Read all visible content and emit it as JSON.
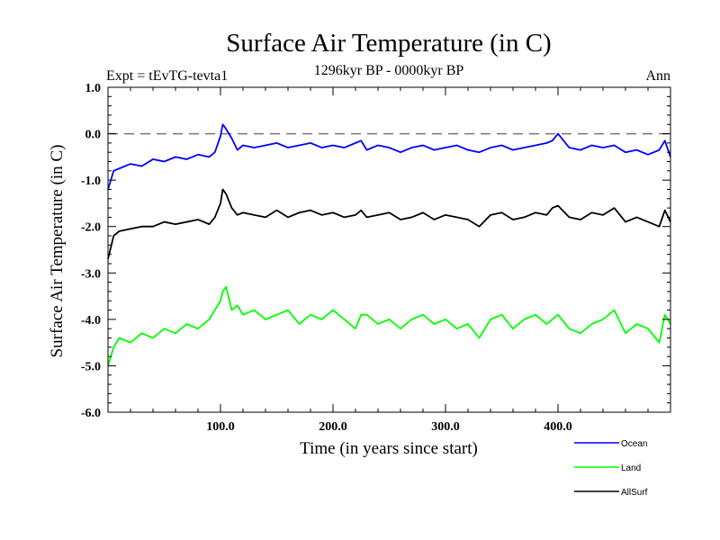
{
  "chart_data": {
    "type": "line",
    "title": "Surface Air Temperature (in C)",
    "subtitle_left": "Expt = tEvTG-tevta1",
    "subtitle_center": "1296kyr BP - 0000kyr BP",
    "subtitle_right": "Ann",
    "xlabel": "Time (in years since start)",
    "ylabel": "Surface Air Temperature (in C)",
    "xlim": [
      0,
      500
    ],
    "ylim": [
      -6.0,
      1.0
    ],
    "x_ticks": [
      100,
      200,
      300,
      400
    ],
    "x_tick_labels": [
      "100.0",
      "200.0",
      "300.0",
      "400.0"
    ],
    "y_ticks": [
      -6,
      -5,
      -4,
      -3,
      -2,
      -1,
      0,
      1
    ],
    "y_tick_labels": [
      "-6.0",
      "-5.0",
      "-4.0",
      "-3.0",
      "-2.0",
      "-1.0",
      "0.0",
      "1.0"
    ],
    "reference_line": {
      "y": 0.0,
      "style": "dashed",
      "color": "#777777"
    },
    "legend_placement": "bottom-right outside",
    "series": [
      {
        "name": "Ocean",
        "color": "#0000ff",
        "x": [
          0,
          5,
          10,
          20,
          30,
          40,
          50,
          60,
          70,
          80,
          90,
          95,
          100,
          102,
          105,
          110,
          115,
          120,
          130,
          140,
          150,
          160,
          170,
          180,
          190,
          200,
          210,
          220,
          225,
          230,
          240,
          250,
          260,
          270,
          280,
          290,
          300,
          310,
          320,
          330,
          340,
          350,
          360,
          370,
          380,
          390,
          395,
          400,
          410,
          420,
          430,
          440,
          450,
          460,
          470,
          480,
          490,
          495,
          500
        ],
        "values": [
          -1.2,
          -0.8,
          -0.75,
          -0.65,
          -0.7,
          -0.55,
          -0.6,
          -0.5,
          -0.55,
          -0.45,
          -0.5,
          -0.4,
          -0.05,
          0.2,
          0.1,
          -0.1,
          -0.35,
          -0.25,
          -0.3,
          -0.25,
          -0.2,
          -0.3,
          -0.25,
          -0.2,
          -0.3,
          -0.25,
          -0.3,
          -0.2,
          -0.15,
          -0.35,
          -0.25,
          -0.3,
          -0.4,
          -0.3,
          -0.25,
          -0.35,
          -0.3,
          -0.25,
          -0.35,
          -0.4,
          -0.3,
          -0.25,
          -0.35,
          -0.3,
          -0.25,
          -0.2,
          -0.15,
          0.0,
          -0.3,
          -0.35,
          -0.25,
          -0.3,
          -0.25,
          -0.4,
          -0.35,
          -0.45,
          -0.35,
          -0.15,
          -0.5
        ]
      },
      {
        "name": "Land",
        "color": "#00ff00",
        "x": [
          0,
          5,
          10,
          20,
          30,
          40,
          50,
          60,
          70,
          80,
          90,
          95,
          100,
          102,
          105,
          110,
          115,
          120,
          130,
          140,
          150,
          160,
          170,
          180,
          190,
          200,
          210,
          220,
          225,
          230,
          240,
          250,
          260,
          270,
          280,
          290,
          300,
          310,
          320,
          330,
          340,
          350,
          360,
          370,
          380,
          390,
          395,
          400,
          410,
          420,
          430,
          440,
          450,
          460,
          470,
          480,
          490,
          495,
          500
        ],
        "values": [
          -5.0,
          -4.6,
          -4.4,
          -4.5,
          -4.3,
          -4.4,
          -4.2,
          -4.3,
          -4.1,
          -4.2,
          -4.0,
          -3.8,
          -3.6,
          -3.4,
          -3.3,
          -3.8,
          -3.7,
          -3.9,
          -3.8,
          -4.0,
          -3.9,
          -3.8,
          -4.1,
          -3.9,
          -4.0,
          -3.8,
          -4.0,
          -4.2,
          -3.9,
          -3.9,
          -4.1,
          -4.0,
          -4.2,
          -4.0,
          -3.9,
          -4.1,
          -4.0,
          -4.2,
          -4.1,
          -4.4,
          -4.0,
          -3.9,
          -4.2,
          -4.0,
          -3.9,
          -4.1,
          -4.0,
          -3.9,
          -4.2,
          -4.3,
          -4.1,
          -4.0,
          -3.8,
          -4.3,
          -4.1,
          -4.2,
          -4.5,
          -3.9,
          -4.1
        ]
      },
      {
        "name": "AllSurf",
        "color": "#000000",
        "x": [
          0,
          5,
          10,
          20,
          30,
          40,
          50,
          60,
          70,
          80,
          90,
          95,
          100,
          102,
          105,
          110,
          115,
          120,
          130,
          140,
          150,
          160,
          170,
          180,
          190,
          200,
          210,
          220,
          225,
          230,
          240,
          250,
          260,
          270,
          280,
          290,
          300,
          310,
          320,
          330,
          340,
          350,
          360,
          370,
          380,
          390,
          395,
          400,
          410,
          420,
          430,
          440,
          450,
          460,
          470,
          480,
          490,
          495,
          500
        ],
        "values": [
          -2.7,
          -2.2,
          -2.1,
          -2.05,
          -2.0,
          -2.0,
          -1.9,
          -1.95,
          -1.9,
          -1.85,
          -1.95,
          -1.8,
          -1.5,
          -1.2,
          -1.3,
          -1.6,
          -1.75,
          -1.7,
          -1.75,
          -1.8,
          -1.65,
          -1.8,
          -1.7,
          -1.65,
          -1.75,
          -1.7,
          -1.8,
          -1.75,
          -1.65,
          -1.8,
          -1.75,
          -1.7,
          -1.85,
          -1.8,
          -1.7,
          -1.85,
          -1.75,
          -1.8,
          -1.85,
          -2.0,
          -1.75,
          -1.7,
          -1.85,
          -1.8,
          -1.7,
          -1.75,
          -1.6,
          -1.55,
          -1.8,
          -1.85,
          -1.7,
          -1.75,
          -1.6,
          -1.9,
          -1.8,
          -1.9,
          -2.0,
          -1.65,
          -1.9
        ]
      }
    ]
  }
}
